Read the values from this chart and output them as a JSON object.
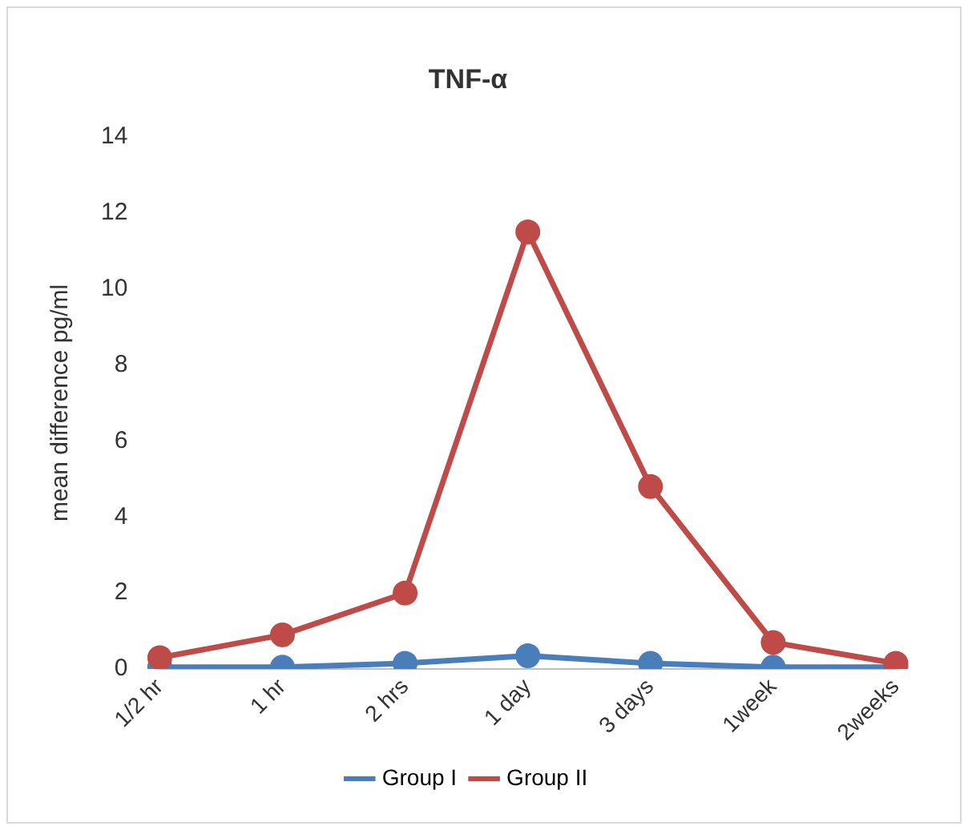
{
  "chart_data": {
    "type": "line",
    "title": "TNF-α",
    "ylabel": "mean difference pg/ml",
    "categories": [
      "1/2 hr",
      "1 hr",
      "2 hrs",
      "1 day",
      "3 days",
      "1week",
      "2weeks"
    ],
    "series": [
      {
        "name": "Group I",
        "color": "#4a7ebb",
        "values": [
          0.05,
          0.05,
          0.15,
          0.35,
          0.15,
          0.05,
          0.05
        ]
      },
      {
        "name": "Group II",
        "color": "#be4b48",
        "values": [
          0.3,
          0.9,
          2.0,
          11.5,
          4.8,
          0.7,
          0.15
        ]
      }
    ],
    "ylim": [
      0,
      14
    ],
    "yticks": [
      0,
      2,
      4,
      6,
      8,
      10,
      12,
      14
    ],
    "grid": false,
    "legend": "bottom",
    "marker": "circle"
  }
}
